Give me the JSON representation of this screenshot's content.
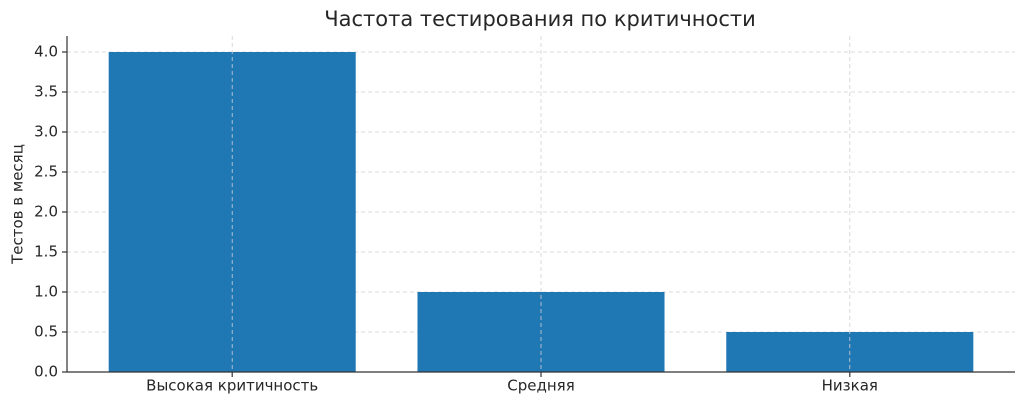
{
  "chart_data": {
    "type": "bar",
    "title": "Частота тестирования по критичности",
    "ylabel": "Тестов в месяц",
    "categories": [
      "Высокая критичность",
      "Средняя",
      "Низкая"
    ],
    "values": [
      4,
      1,
      0.5
    ],
    "color": "#1f77b4",
    "ylim": [
      0,
      4.2
    ],
    "yticks": [
      {
        "value": 0,
        "label": "0.0"
      },
      0.5,
      {
        "value": 1,
        "label": "1.0"
      },
      1.5,
      {
        "value": 2,
        "label": "2.0"
      },
      2.5,
      {
        "value": 3,
        "label": "3.0"
      },
      3.5,
      {
        "value": 4,
        "label": "4.0"
      }
    ],
    "grid": true
  }
}
